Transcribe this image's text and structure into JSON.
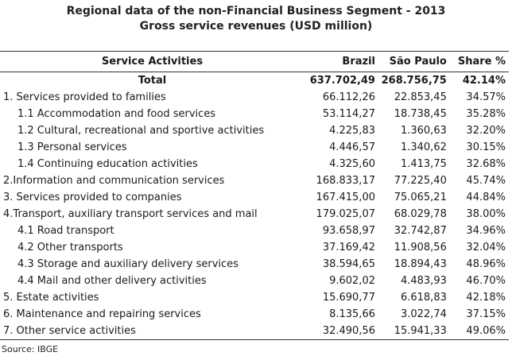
{
  "title_line1": "Regional data of the non-Financial Business Segment - 2013",
  "title_line2": "Gross service revenues (USD million)",
  "headers": [
    "Service Activities",
    "Brazil",
    "São Paulo",
    "Share %"
  ],
  "total": {
    "label": "Total",
    "brazil": "637.702,49",
    "sao_paulo": "268.756,75",
    "share": "42.14%"
  },
  "rows": [
    {
      "label": "1. Services provided to families",
      "brazil": "66.112,26",
      "sao_paulo": "22.853,45",
      "share": "34.57%"
    },
    {
      "label": "1.1 Accommodation and food services",
      "brazil": "53.114,27",
      "sao_paulo": "18.738,45",
      "share": "35.28%"
    },
    {
      "label": "1.2 Cultural, recreational and sportive activities",
      "brazil": "4.225,83",
      "sao_paulo": "1.360,63",
      "share": "32.20%"
    },
    {
      "label": "1.3 Personal services",
      "brazil": "4.446,57",
      "sao_paulo": "1.340,62",
      "share": "30.15%"
    },
    {
      "label": "1.4 Continuing education activities",
      "brazil": "4.325,60",
      "sao_paulo": "1.413,75",
      "share": "32.68%"
    },
    {
      "label": "2.Information and communication services",
      "brazil": "168.833,17",
      "sao_paulo": "77.225,40",
      "share": "45.74%"
    },
    {
      "label": "3. Services provided to companies",
      "brazil": "167.415,00",
      "sao_paulo": "75.065,21",
      "share": "44.84%"
    },
    {
      "label": "4.Transport, auxiliary transport services and mail",
      "brazil": "179.025,07",
      "sao_paulo": "68.029,78",
      "share": "38.00%"
    },
    {
      "label": "4.1 Road transport",
      "brazil": "93.658,97",
      "sao_paulo": "32.742,87",
      "share": "34.96%"
    },
    {
      "label": "4.2 Other transports",
      "brazil": "37.169,42",
      "sao_paulo": "11.908,56",
      "share": "32.04%"
    },
    {
      "label": "4.3 Storage and auxiliary delivery services",
      "brazil": "38.594,65",
      "sao_paulo": "18.894,43",
      "share": "48.96%"
    },
    {
      "label": "4.4 Mail and other delivery activities",
      "brazil": "9.602,02",
      "sao_paulo": "4.483,93",
      "share": "46.70%"
    },
    {
      "label": "5. Estate activities",
      "brazil": "15.690,77",
      "sao_paulo": "6.618,83",
      "share": "42.18%"
    },
    {
      "label": "6. Maintenance and repairing services",
      "brazil": "8.135,66",
      "sao_paulo": "3.022,74",
      "share": "37.15%"
    },
    {
      "label": "7. Other service activities",
      "brazil": "32.490,56",
      "sao_paulo": "15.941,33",
      "share": "49.06%"
    }
  ],
  "source": "Source: IBGE"
}
